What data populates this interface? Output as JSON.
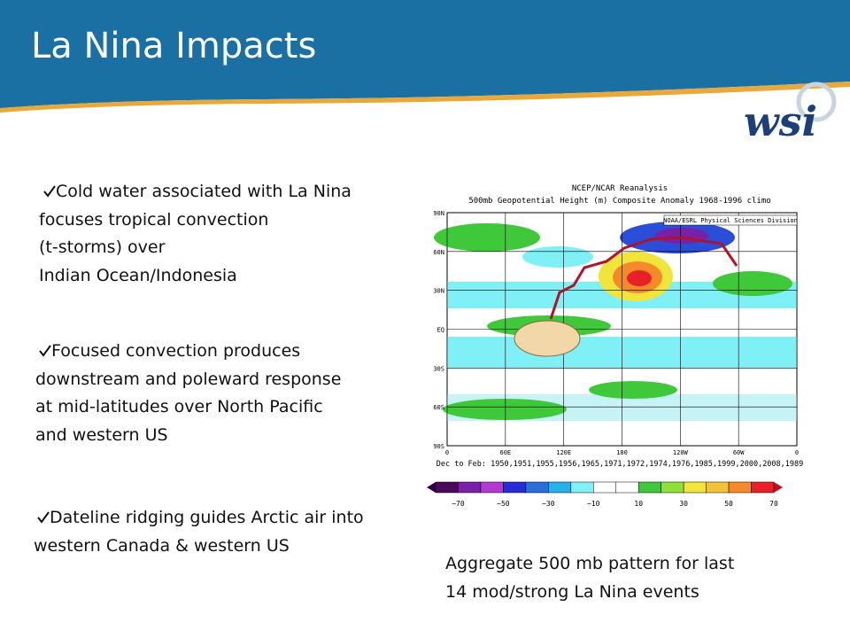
{
  "header": {
    "title": "La Nina Impacts",
    "logo": "wsi"
  },
  "bullets": [
    {
      "lines": [
        "Cold water associated with La Nina",
        "focuses tropical convection",
        "(t-storms) over",
        "Indian Ocean/Indonesia"
      ]
    },
    {
      "lines": [
        "Focused convection produces",
        "downstream and poleward response",
        "at mid-latitudes over North Pacific",
        "and western US"
      ]
    },
    {
      "lines": [
        "Dateline ridging guides Arctic air into",
        "western Canada & western US"
      ]
    }
  ],
  "map": {
    "title": "NCEP/NCAR Reanalysis",
    "subtitle": "500mb Geopotential Height (m) Composite Anomaly 1968-1996 climo",
    "credit": "NOAA/ESRL Physical Sciences Division",
    "lat_labels": [
      "90N",
      "60N",
      "30N",
      "EQ",
      "30S",
      "60S",
      "90S"
    ],
    "lon_labels": [
      "0",
      "60E",
      "120E",
      "180",
      "120W",
      "60W",
      "0"
    ],
    "footnote": "Dec to Feb: 1950,1951,1955,1956,1965,1971,1972,1974,1976,1985,1999,2000,2008,1989",
    "colorbar_labels": [
      "−70",
      "−50",
      "−30",
      "−10",
      "10",
      "30",
      "50",
      "70"
    ]
  },
  "caption": [
    "Aggregate 500 mb pattern for last",
    "14 mod/strong La Nina events"
  ]
}
